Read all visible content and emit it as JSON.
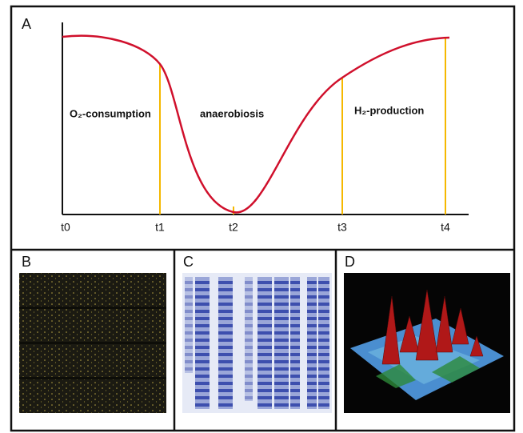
{
  "panel_a": {
    "label": "A",
    "time_labels": [
      "t0",
      "t1",
      "t2",
      "t3",
      "t4"
    ],
    "phase_labels": [
      "O₂-consumption",
      "anaerobiosis",
      "H₂-production"
    ]
  },
  "panel_b": {
    "label": "B"
  },
  "panel_c": {
    "label": "C"
  },
  "panel_d": {
    "label": "D"
  }
}
